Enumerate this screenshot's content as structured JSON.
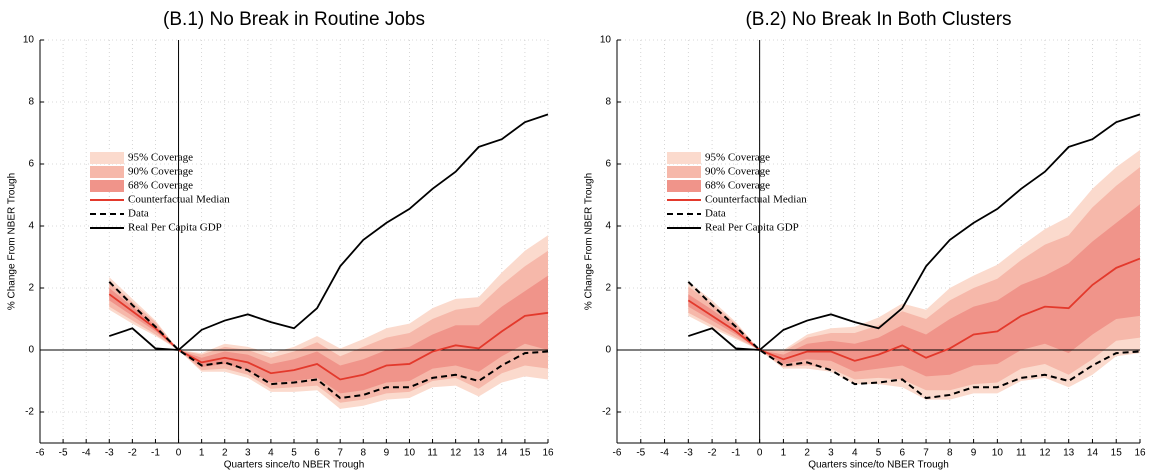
{
  "chart_data": [
    {
      "type": "line",
      "title": "(B.1) No Break in Routine Jobs",
      "x_label": "Quarters since/to NBER Trough",
      "y_label": "% Change From NBER Trough",
      "x": [
        -3,
        -2,
        -1,
        0,
        1,
        2,
        3,
        4,
        5,
        6,
        7,
        8,
        9,
        10,
        11,
        12,
        13,
        14,
        15,
        16
      ],
      "xlim": [
        -6,
        16
      ],
      "xticks": [
        -6,
        -5,
        -4,
        -3,
        -2,
        -1,
        0,
        1,
        2,
        3,
        4,
        5,
        6,
        7,
        8,
        9,
        10,
        11,
        12,
        13,
        14,
        15,
        16
      ],
      "ylim": [
        -3,
        10
      ],
      "yticks": [
        -2,
        0,
        2,
        4,
        6,
        8,
        10
      ],
      "grid": true,
      "series": [
        {
          "name": "95% Coverage",
          "color": "#fbdacd",
          "lower": [
            1.3,
            0.85,
            0.45,
            0,
            -0.7,
            -0.7,
            -0.9,
            -1.35,
            -1.35,
            -1.3,
            -1.9,
            -1.8,
            -1.6,
            -1.55,
            -1.2,
            -1.15,
            -1.5,
            -1.05,
            -0.85,
            -0.95
          ],
          "upper": [
            2.35,
            1.65,
            0.95,
            0,
            -0.1,
            0.2,
            0.1,
            -0.1,
            0.1,
            0.45,
            0.05,
            0.35,
            0.7,
            0.85,
            1.35,
            1.65,
            1.7,
            2.5,
            3.2,
            3.7
          ]
        },
        {
          "name": "90% Coverage",
          "color": "#f6b8aa",
          "lower": [
            1.4,
            0.95,
            0.5,
            0,
            -0.65,
            -0.6,
            -0.8,
            -1.25,
            -1.2,
            -1.15,
            -1.7,
            -1.6,
            -1.4,
            -1.35,
            -1.0,
            -0.9,
            -1.25,
            -0.75,
            -0.5,
            -0.6
          ],
          "upper": [
            2.2,
            1.55,
            0.9,
            0,
            -0.15,
            0.1,
            0.0,
            -0.25,
            -0.05,
            0.25,
            -0.2,
            0.1,
            0.4,
            0.55,
            1.0,
            1.3,
            1.4,
            2.1,
            2.7,
            3.2
          ]
        },
        {
          "name": "68% Coverage",
          "color": "#f0948a",
          "lower": [
            1.6,
            1.1,
            0.6,
            0,
            -0.55,
            -0.45,
            -0.65,
            -1.05,
            -1.0,
            -0.9,
            -1.4,
            -1.3,
            -1.05,
            -1.0,
            -0.6,
            -0.5,
            -0.7,
            -0.2,
            0.2,
            0.0
          ],
          "upper": [
            2.0,
            1.4,
            0.8,
            0,
            -0.25,
            -0.05,
            -0.15,
            -0.45,
            -0.3,
            -0.05,
            -0.5,
            -0.3,
            0.0,
            0.1,
            0.5,
            0.8,
            0.8,
            1.4,
            1.9,
            2.4
          ]
        },
        {
          "name": "Counterfactual Median",
          "color": "#e3392c",
          "values": [
            1.8,
            1.25,
            0.7,
            0,
            -0.4,
            -0.25,
            -0.4,
            -0.75,
            -0.65,
            -0.45,
            -0.95,
            -0.8,
            -0.5,
            -0.45,
            -0.05,
            0.15,
            0.05,
            0.6,
            1.1,
            1.2
          ]
        },
        {
          "name": "Data",
          "color": "#000000",
          "dash": true,
          "values": [
            2.2,
            1.45,
            0.75,
            0,
            -0.5,
            -0.4,
            -0.65,
            -1.1,
            -1.05,
            -0.95,
            -1.55,
            -1.45,
            -1.2,
            -1.2,
            -0.9,
            -0.8,
            -1.0,
            -0.5,
            -0.1,
            -0.05
          ]
        },
        {
          "name": "Real Per Capita GDP",
          "color": "#000000",
          "values": [
            0.45,
            0.7,
            0.05,
            0,
            0.65,
            0.95,
            1.15,
            0.9,
            0.7,
            1.35,
            2.7,
            3.55,
            4.1,
            4.55,
            5.2,
            5.75,
            6.55,
            6.8,
            7.35,
            7.6
          ]
        }
      ]
    },
    {
      "type": "line",
      "title": "(B.2) No Break In Both Clusters",
      "x_label": "Quarters since/to NBER Trough",
      "y_label": "% Change From NBER Trough",
      "x": [
        -3,
        -2,
        -1,
        0,
        1,
        2,
        3,
        4,
        5,
        6,
        7,
        8,
        9,
        10,
        11,
        12,
        13,
        14,
        15,
        16
      ],
      "xlim": [
        -6,
        16
      ],
      "xticks": [
        -6,
        -5,
        -4,
        -3,
        -2,
        -1,
        0,
        1,
        2,
        3,
        4,
        5,
        6,
        7,
        8,
        9,
        10,
        11,
        12,
        13,
        14,
        15,
        16
      ],
      "ylim": [
        -3,
        10
      ],
      "yticks": [
        -2,
        0,
        2,
        4,
        6,
        8,
        10
      ],
      "grid": true,
      "series": [
        {
          "name": "95% Coverage",
          "color": "#fbdacd",
          "lower": [
            1.1,
            0.7,
            0.35,
            0,
            -0.6,
            -0.6,
            -0.7,
            -1.1,
            -1.1,
            -1.2,
            -1.6,
            -1.6,
            -1.4,
            -1.4,
            -1.0,
            -0.9,
            -1.2,
            -0.8,
            -0.2,
            -0.1
          ],
          "upper": [
            2.2,
            1.6,
            0.9,
            0,
            0.0,
            0.5,
            0.7,
            0.75,
            1.05,
            1.5,
            1.3,
            2.0,
            2.4,
            2.75,
            3.35,
            3.9,
            4.3,
            5.2,
            5.9,
            6.45
          ]
        },
        {
          "name": "90% Coverage",
          "color": "#f6b8aa",
          "lower": [
            1.2,
            0.8,
            0.4,
            0,
            -0.55,
            -0.5,
            -0.6,
            -0.95,
            -0.9,
            -0.95,
            -1.3,
            -1.3,
            -1.1,
            -1.05,
            -0.6,
            -0.45,
            -0.8,
            -0.3,
            0.3,
            0.4
          ],
          "upper": [
            2.05,
            1.5,
            0.85,
            0,
            -0.05,
            0.4,
            0.55,
            0.55,
            0.8,
            1.25,
            1.0,
            1.6,
            2.0,
            2.3,
            2.9,
            3.4,
            3.7,
            4.6,
            5.3,
            5.9
          ]
        },
        {
          "name": "68% Coverage",
          "color": "#f0948a",
          "lower": [
            1.4,
            0.95,
            0.5,
            0,
            -0.45,
            -0.3,
            -0.35,
            -0.7,
            -0.6,
            -0.5,
            -0.85,
            -0.8,
            -0.5,
            -0.45,
            0.0,
            0.2,
            -0.1,
            0.5,
            1.0,
            1.1
          ],
          "upper": [
            1.8,
            1.3,
            0.75,
            0,
            -0.15,
            0.2,
            0.3,
            0.2,
            0.4,
            0.8,
            0.5,
            1.0,
            1.4,
            1.6,
            2.1,
            2.4,
            2.8,
            3.5,
            4.1,
            4.7
          ]
        },
        {
          "name": "Counterfactual Median",
          "color": "#e3392c",
          "values": [
            1.6,
            1.1,
            0.6,
            0,
            -0.3,
            -0.05,
            -0.05,
            -0.35,
            -0.15,
            0.15,
            -0.25,
            0.05,
            0.5,
            0.6,
            1.1,
            1.4,
            1.35,
            2.1,
            2.65,
            2.95
          ]
        },
        {
          "name": "Data",
          "color": "#000000",
          "dash": true,
          "values": [
            2.2,
            1.45,
            0.75,
            0,
            -0.5,
            -0.4,
            -0.65,
            -1.1,
            -1.05,
            -0.95,
            -1.55,
            -1.45,
            -1.2,
            -1.2,
            -0.9,
            -0.8,
            -1.0,
            -0.5,
            -0.1,
            -0.05
          ]
        },
        {
          "name": "Real Per Capita GDP",
          "color": "#000000",
          "values": [
            0.45,
            0.7,
            0.05,
            0,
            0.65,
            0.95,
            1.15,
            0.9,
            0.7,
            1.35,
            2.7,
            3.55,
            4.1,
            4.55,
            5.2,
            5.75,
            6.55,
            6.8,
            7.35,
            7.6
          ]
        }
      ]
    }
  ]
}
